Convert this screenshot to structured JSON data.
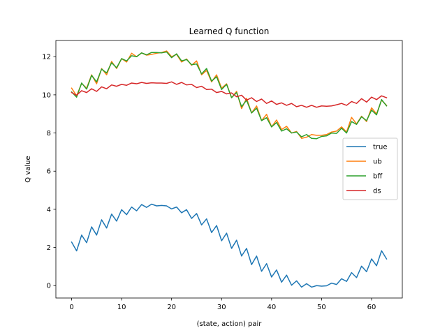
{
  "chart_data": {
    "type": "line",
    "title": "Learned Q function",
    "xlabel": "(state, action) pair",
    "ylabel": "Q value",
    "xlim": [
      -3.15,
      66.15
    ],
    "ylim": [
      -0.65,
      12.85
    ],
    "xticks": [
      0,
      10,
      20,
      30,
      40,
      50,
      60
    ],
    "yticks": [
      0,
      2,
      4,
      6,
      8,
      10,
      12
    ],
    "grid": false,
    "legend_position": "center-right",
    "x": [
      0,
      1,
      2,
      3,
      4,
      5,
      6,
      7,
      8,
      9,
      10,
      11,
      12,
      13,
      14,
      15,
      16,
      17,
      18,
      19,
      20,
      21,
      22,
      23,
      24,
      25,
      26,
      27,
      28,
      29,
      30,
      31,
      32,
      33,
      34,
      35,
      36,
      37,
      38,
      39,
      40,
      41,
      42,
      43,
      44,
      45,
      46,
      47,
      48,
      49,
      50,
      51,
      52,
      53,
      54,
      55,
      56,
      57,
      58,
      59,
      60,
      61,
      62,
      63
    ],
    "series": [
      {
        "name": "true",
        "color": "#1f77b4",
        "values": [
          2.28,
          1.82,
          2.65,
          2.25,
          3.08,
          2.65,
          3.45,
          3.02,
          3.75,
          3.38,
          3.98,
          3.72,
          4.12,
          3.92,
          4.25,
          4.1,
          4.27,
          4.18,
          4.2,
          4.18,
          4.02,
          4.12,
          3.82,
          3.98,
          3.52,
          3.78,
          3.18,
          3.5,
          2.78,
          3.15,
          2.35,
          2.75,
          1.95,
          2.38,
          1.55,
          1.95,
          1.1,
          1.55,
          0.75,
          1.15,
          0.45,
          0.82,
          0.18,
          0.55,
          0.02,
          0.25,
          -0.08,
          0.1,
          -0.08,
          0.0,
          -0.03,
          -0.01,
          0.13,
          0.06,
          0.36,
          0.22,
          0.68,
          0.42,
          1.02,
          0.73,
          1.4,
          1.04,
          1.83,
          1.4
        ]
      },
      {
        "name": "ub",
        "color": "#ff7f0e",
        "values": [
          10.35,
          9.95,
          10.6,
          10.35,
          11.05,
          10.58,
          11.38,
          11.05,
          11.75,
          11.38,
          11.9,
          11.72,
          12.18,
          12.0,
          12.2,
          12.08,
          12.12,
          12.18,
          12.22,
          12.3,
          12.0,
          12.12,
          11.72,
          11.88,
          11.55,
          11.78,
          11.05,
          11.28,
          10.68,
          11.05,
          10.35,
          10.58,
          9.85,
          10.18,
          9.28,
          9.82,
          9.05,
          9.42,
          8.65,
          8.98,
          8.32,
          8.68,
          8.18,
          8.35,
          8.0,
          8.08,
          7.72,
          7.78,
          7.92,
          7.88,
          7.88,
          7.92,
          8.05,
          8.1,
          8.32,
          8.05,
          8.82,
          8.48,
          8.88,
          8.6,
          9.32,
          9.0,
          9.72,
          9.45
        ]
      },
      {
        "name": "bff",
        "color": "#2ca02c",
        "values": [
          10.15,
          9.88,
          10.62,
          10.3,
          11.02,
          10.68,
          11.35,
          11.15,
          11.68,
          11.42,
          11.9,
          11.78,
          12.05,
          12.0,
          12.2,
          12.1,
          12.22,
          12.22,
          12.2,
          12.25,
          11.95,
          12.15,
          11.78,
          11.85,
          11.58,
          11.62,
          11.1,
          11.38,
          10.72,
          10.95,
          10.28,
          10.55,
          9.85,
          10.12,
          9.38,
          9.72,
          9.05,
          9.3,
          8.65,
          8.8,
          8.32,
          8.55,
          8.1,
          8.22,
          8.0,
          8.05,
          7.8,
          7.92,
          7.72,
          7.7,
          7.82,
          7.85,
          8.0,
          7.98,
          8.25,
          8.0,
          8.6,
          8.45,
          8.85,
          8.65,
          9.2,
          8.95,
          9.75,
          9.42
        ]
      },
      {
        "name": "ds",
        "color": "#d62728",
        "values": [
          10.12,
          9.98,
          10.22,
          10.12,
          10.32,
          10.18,
          10.42,
          10.32,
          10.52,
          10.45,
          10.55,
          10.5,
          10.62,
          10.58,
          10.65,
          10.6,
          10.63,
          10.62,
          10.62,
          10.6,
          10.68,
          10.55,
          10.65,
          10.52,
          10.55,
          10.38,
          10.45,
          10.28,
          10.3,
          10.12,
          10.18,
          10.05,
          10.1,
          9.9,
          9.98,
          9.72,
          9.85,
          9.65,
          9.78,
          9.55,
          9.68,
          9.5,
          9.58,
          9.45,
          9.55,
          9.38,
          9.45,
          9.35,
          9.45,
          9.35,
          9.42,
          9.4,
          9.42,
          9.48,
          9.55,
          9.45,
          9.65,
          9.55,
          9.8,
          9.62,
          9.88,
          9.75,
          9.95,
          9.85
        ]
      }
    ]
  }
}
